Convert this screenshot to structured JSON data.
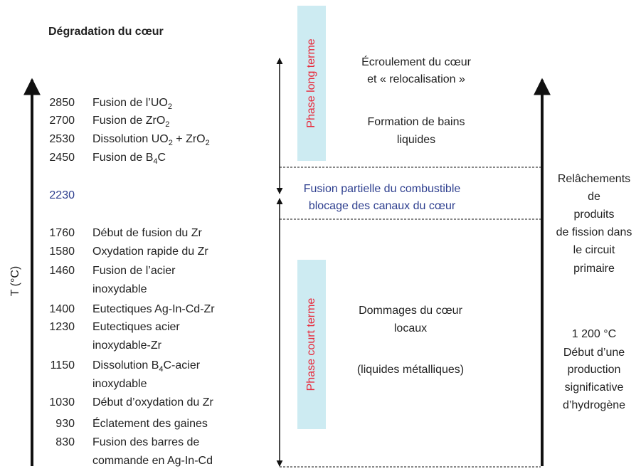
{
  "title": "Dégradation du cœur",
  "axis_label": "T (°C)",
  "rows": [
    {
      "temperature": 2850,
      "label": [
        [
          "Fusion de l’UO",
          "2"
        ]
      ]
    },
    {
      "temperature": 2700,
      "label": [
        [
          "Fusion de ZrO",
          "2"
        ]
      ]
    },
    {
      "temperature": 2530,
      "label": [
        [
          "Dissolution UO",
          "2",
          " + ZrO",
          "2"
        ]
      ]
    },
    {
      "temperature": 2450,
      "label": [
        [
          "Fusion de B",
          "4",
          "C"
        ]
      ]
    },
    {
      "temperature": 2230
    },
    {
      "temperature": 1760,
      "label": [
        [
          "Début de fusion du Zr"
        ]
      ]
    },
    {
      "temperature": 1580,
      "label": [
        [
          "Oxydation rapide du Zr"
        ]
      ]
    },
    {
      "temperature": 1460,
      "label": [
        [
          "Fusion de l’acier"
        ],
        [
          "inoxydable"
        ]
      ]
    },
    {
      "temperature": 1400,
      "label": [
        [
          "Eutectiques Ag-In-Cd-Zr"
        ]
      ]
    },
    {
      "temperature": 1230,
      "label": [
        [
          "Eutectiques acier"
        ],
        [
          "inoxydable-Zr"
        ]
      ]
    },
    {
      "temperature": 1150,
      "label": [
        [
          "Dissolution B",
          "4",
          "C-acier"
        ],
        [
          "inoxydable"
        ]
      ]
    },
    {
      "temperature": 1030,
      "label": [
        [
          "Début d’oxydation du Zr"
        ]
      ]
    },
    {
      "temperature": 930,
      "label": [
        [
          "Éclatement des gaines"
        ]
      ]
    },
    {
      "temperature": 830,
      "label": [
        [
          "Fusion des barres de"
        ],
        [
          "commande en Ag-In-Cd"
        ]
      ]
    }
  ],
  "phases": [
    "Phase long terme",
    "Phase court terme"
  ],
  "zones": {
    "top": [
      "Écroulement du cœur",
      "et « relocalisation »",
      "Formation de bains",
      "liquides"
    ],
    "middle": [
      "Fusion partielle du combustible",
      "blocage des canaux du cœur"
    ],
    "bottom": [
      "Dommages du cœur",
      "locaux",
      "(liquides métalliques)"
    ]
  },
  "right_notes": {
    "releases": [
      "Relâchements",
      "de",
      "produits",
      "de fission dans",
      "le circuit",
      "primaire"
    ],
    "hydrogen": [
      "1 200 °C",
      "Début d’une",
      "production",
      "significative",
      "d’hydrogène"
    ]
  }
}
